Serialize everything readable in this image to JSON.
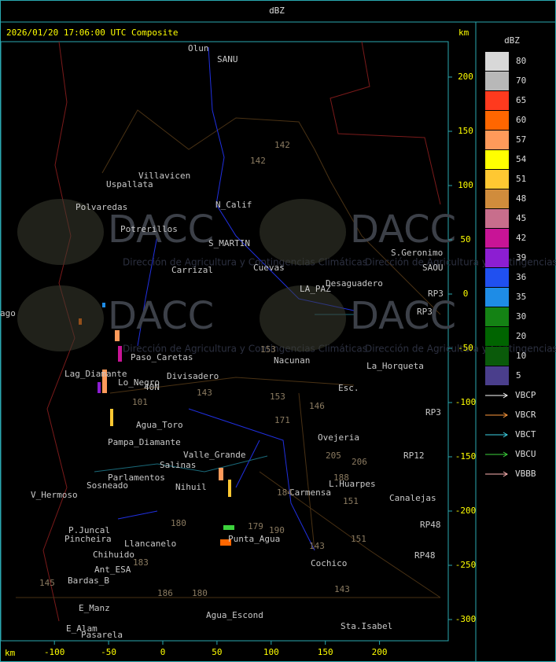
{
  "header": {
    "title": "dBZ"
  },
  "map": {
    "title": "2026/01/20 17:06:00 UTC Composite",
    "unit": "km",
    "xticks": [
      -100,
      -50,
      0,
      50,
      100,
      150,
      200
    ],
    "yticks": [
      200,
      150,
      100,
      50,
      0,
      -50,
      -100,
      -150,
      -200,
      -250,
      -300
    ],
    "places": [
      "Olun",
      "SANU",
      "Villavicen",
      "Uspallata",
      "Polvaredas",
      "N_Calif",
      "Potrerillos",
      "S_MARTIN",
      "Carrizal",
      "Cuevas",
      "LA_PAZ",
      "Desaguadero",
      "S.Geronimo",
      "SAOU",
      "RP3",
      "RP3",
      "Nacunan",
      "La_Horqueta",
      "Esc.",
      "Paso_Caretas",
      "Divisadero",
      "Lag_Diamante",
      "Lo_Negro",
      "40N",
      "101",
      "Agua_Toro",
      "Pampa_Diamante",
      "Salinas",
      "Valle_Grande",
      "Parlamentos",
      "Sosneado",
      "Nihuil",
      "V_Hermoso",
      "Ovejeria",
      "L.Huarpes",
      "Canalejas",
      "Carmensa",
      "Punta_Agua",
      "Cochico",
      "Sta.Isabel",
      "Agua_Escond",
      "Chihuido",
      "Ant_ESA",
      "Bardas_B",
      "E_Manz",
      "E_Alam",
      "Pasarela",
      "P.Juncal",
      "Pincheira",
      "Llancanelo",
      "RP12",
      "RP48",
      "RP48",
      "RP3",
      "142",
      "142",
      "153",
      "153",
      "143",
      "146",
      "171",
      "205",
      "206",
      "188",
      "151",
      "151",
      "143",
      "143",
      "184",
      "180",
      "180",
      "190",
      "179",
      "145",
      "186",
      "183",
      "ago"
    ]
  },
  "watermark": {
    "name": "DACC",
    "subtitle": "Dirección de Agricultura y Contingencias Climáticas"
  },
  "legend": {
    "title": "dBZ",
    "levels": [
      {
        "value": 80,
        "color": "#d8d8d8"
      },
      {
        "value": 70,
        "color": "#b8b8b8"
      },
      {
        "value": 65,
        "color": "#ff3a1e"
      },
      {
        "value": 60,
        "color": "#ff6600"
      },
      {
        "value": 57,
        "color": "#ff9a5a"
      },
      {
        "value": 54,
        "color": "#ffff00"
      },
      {
        "value": 51,
        "color": "#ffc832"
      },
      {
        "value": 48,
        "color": "#d08c3c"
      },
      {
        "value": 45,
        "color": "#c86e8c"
      },
      {
        "value": 42,
        "color": "#c81496"
      },
      {
        "value": 39,
        "color": "#8c1ed2"
      },
      {
        "value": 36,
        "color": "#2050f0"
      },
      {
        "value": 35,
        "color": "#1e8ce6"
      },
      {
        "value": 30,
        "color": "#148214"
      },
      {
        "value": 20,
        "color": "#006400"
      },
      {
        "value": 10,
        "color": "#0a5a0a"
      },
      {
        "value": 5,
        "color": "#4a3e8c"
      }
    ],
    "radars": [
      {
        "name": "VBCP",
        "color": "#ffffff"
      },
      {
        "name": "VBCR",
        "color": "#ff9a3c"
      },
      {
        "name": "VBCT",
        "color": "#3cd2e6"
      },
      {
        "name": "VBCU",
        "color": "#3cd23c"
      },
      {
        "name": "VBBB",
        "color": "#ffb4b4"
      }
    ]
  }
}
